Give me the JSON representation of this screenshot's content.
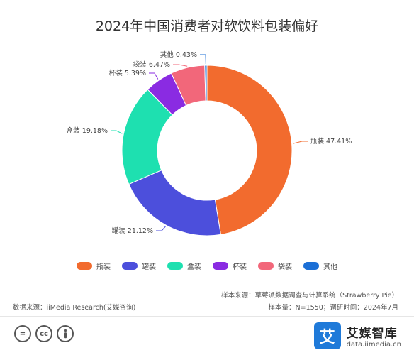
{
  "chart_data": {
    "type": "pie",
    "title": "2024年中国消费者对软饮料包装偏好",
    "slices": [
      {
        "name": "瓶装",
        "value": 47.41,
        "label": "瓶装 47.41%",
        "color": "#f26b2e"
      },
      {
        "name": "罐装",
        "value": 21.12,
        "label": "罐装 21.12%",
        "color": "#4c4fdc"
      },
      {
        "name": "盒装",
        "value": 19.18,
        "label": "盒装 19.18%",
        "color": "#1ee0b0"
      },
      {
        "name": "杯装",
        "value": 5.39,
        "label": "杯装 5.39%",
        "color": "#8a2be2"
      },
      {
        "name": "袋装",
        "value": 6.47,
        "label": "袋装 6.47%",
        "color": "#f2677a"
      },
      {
        "name": "其他",
        "value": 0.43,
        "label": "其他 0.43%",
        "color": "#1b6fd6"
      }
    ],
    "legend": [
      "瓶装",
      "罐装",
      "盒装",
      "杯装",
      "袋装",
      "其他"
    ]
  },
  "footer": {
    "sample_source": "样本来源：草莓派数据调查与计算系统（Strawberry Pie）",
    "data_source": "数据来源：iiMedia Research(艾媒咨询)",
    "sample_size": "样本量：N=1550；调研时间：2024年7月"
  },
  "license_icons": [
    "=",
    "cc",
    "person"
  ],
  "brand": {
    "logo_glyph": "艾",
    "name": "艾媒智库",
    "url": "data.iimedia.cn"
  }
}
